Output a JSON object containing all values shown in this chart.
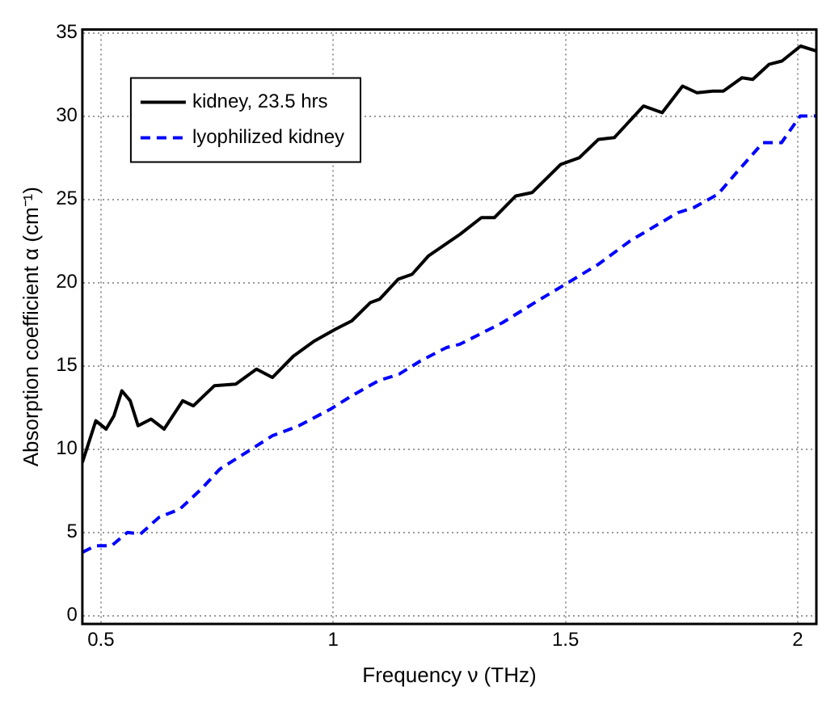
{
  "chart_data": {
    "type": "line",
    "xlabel": "Frequency ν (THz)",
    "ylabel": "Absorption coefficient α (cm⁻¹)",
    "xlim": [
      0.46,
      2.04
    ],
    "xticks": [
      0.5,
      1,
      1.5,
      2
    ],
    "ylim": [
      -0.5,
      35.2
    ],
    "yticks": [
      0,
      5,
      10,
      15,
      20,
      25,
      30,
      35
    ],
    "grid": true,
    "legend": "top left",
    "marker": "none",
    "series": [
      {
        "name": "kidney, 23.5 hrs",
        "color": "#000000",
        "line_style": "solid",
        "x": [
          0.46,
          0.489,
          0.511,
          0.528,
          0.545,
          0.563,
          0.58,
          0.608,
          0.636,
          0.676,
          0.699,
          0.744,
          0.79,
          0.835,
          0.869,
          0.915,
          0.96,
          1.005,
          1.04,
          1.08,
          1.1,
          1.14,
          1.17,
          1.205,
          1.273,
          1.319,
          1.347,
          1.393,
          1.428,
          1.49,
          1.53,
          1.571,
          1.605,
          1.668,
          1.708,
          1.752,
          1.783,
          1.817,
          1.84,
          1.88,
          1.903,
          1.938,
          1.966,
          2.006,
          2.04
        ],
        "values": [
          9.2,
          11.7,
          11.2,
          12.0,
          13.5,
          12.9,
          11.4,
          11.8,
          11.2,
          12.9,
          12.6,
          13.8,
          13.9,
          14.8,
          14.3,
          15.6,
          16.5,
          17.2,
          17.7,
          18.8,
          19.0,
          20.2,
          20.5,
          21.6,
          22.9,
          23.9,
          23.9,
          25.2,
          25.4,
          27.1,
          27.5,
          28.6,
          28.7,
          30.6,
          30.2,
          31.8,
          31.4,
          31.5,
          31.5,
          32.3,
          32.2,
          33.1,
          33.3,
          34.2,
          33.9
        ]
      },
      {
        "name": "lyophilized kidney",
        "color": "#0000ff",
        "line_style": "dashed",
        "x": [
          0.46,
          0.489,
          0.523,
          0.557,
          0.585,
          0.625,
          0.67,
          0.716,
          0.756,
          0.813,
          0.869,
          0.926,
          0.994,
          1.04,
          1.097,
          1.142,
          1.188,
          1.244,
          1.273,
          1.365,
          1.434,
          1.5,
          1.571,
          1.639,
          1.742,
          1.776,
          1.828,
          1.868,
          1.925,
          1.965,
          2.005,
          2.04
        ],
        "values": [
          3.8,
          4.2,
          4.2,
          5.0,
          4.9,
          5.9,
          6.4,
          7.6,
          8.8,
          9.8,
          10.8,
          11.4,
          12.4,
          13.2,
          14.1,
          14.5,
          15.3,
          16.1,
          16.3,
          17.6,
          18.8,
          19.9,
          21.1,
          22.5,
          24.2,
          24.5,
          25.3,
          26.6,
          28.4,
          28.4,
          30.0,
          30.0
        ]
      }
    ]
  }
}
